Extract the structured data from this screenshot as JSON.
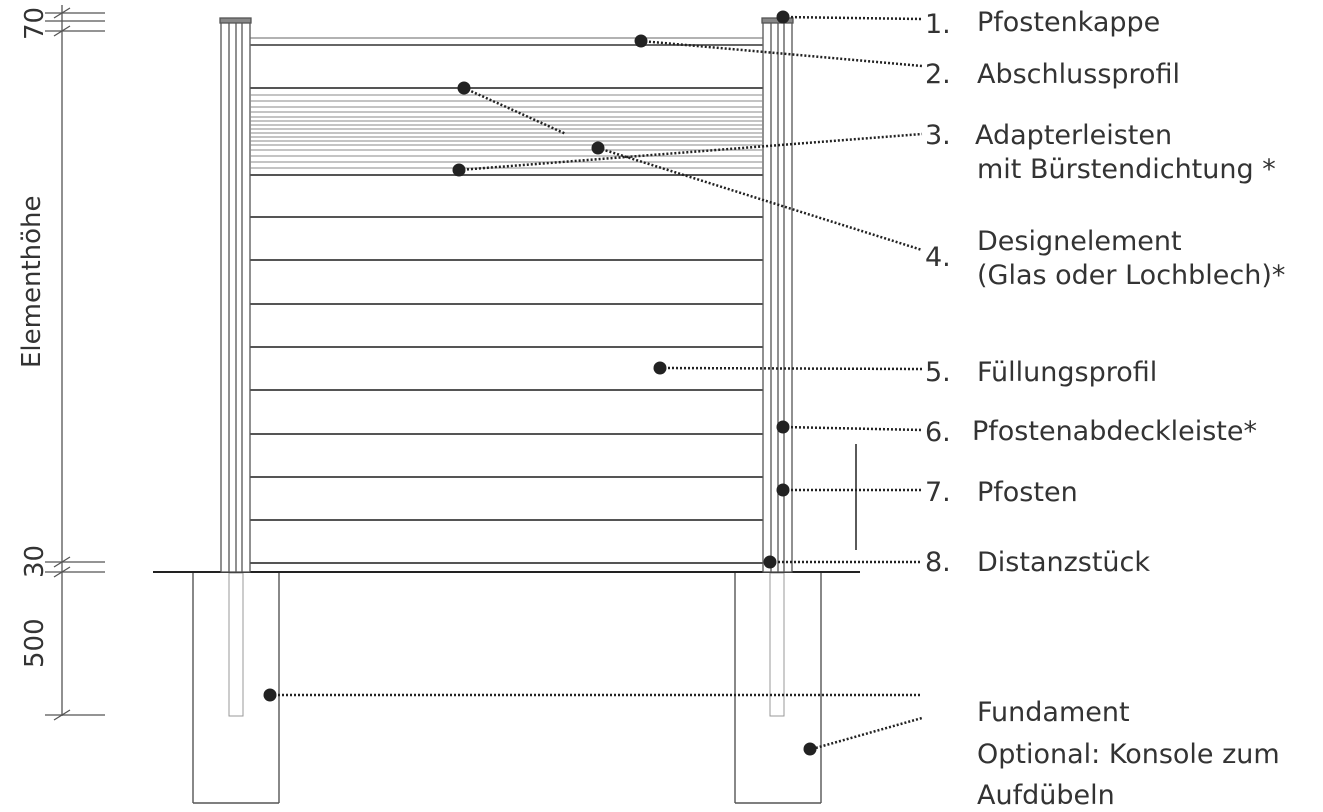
{
  "dimensions": {
    "top": "70",
    "bottom": "30",
    "foundation": "500",
    "height_label": "Elementhöhe"
  },
  "labels": [
    {
      "num": "1.",
      "lines": [
        "Pfostenkappe"
      ]
    },
    {
      "num": "2.",
      "lines": [
        "Abschlussprofil"
      ]
    },
    {
      "num": "3.",
      "lines": [
        "Adapterleisten",
        "mit Bürstendichtung *"
      ]
    },
    {
      "num": "4.",
      "lines": [
        "Designelement",
        "(Glas oder Lochblech)*"
      ]
    },
    {
      "num": "5.",
      "lines": [
        "Füllungsprofil"
      ]
    },
    {
      "num": "6.",
      "lines": [
        "Pfostenabdeckleiste*"
      ]
    },
    {
      "num": "7.",
      "lines": [
        "Pfosten"
      ]
    },
    {
      "num": "8.",
      "lines": [
        "Distanzstück"
      ]
    },
    {
      "num": "",
      "lines": [
        "Fundament",
        "Optional: Konsole zum",
        "Aufdübeln"
      ]
    }
  ],
  "colors": {
    "line": "#555555",
    "dot": "#222222",
    "text": "#333333"
  }
}
